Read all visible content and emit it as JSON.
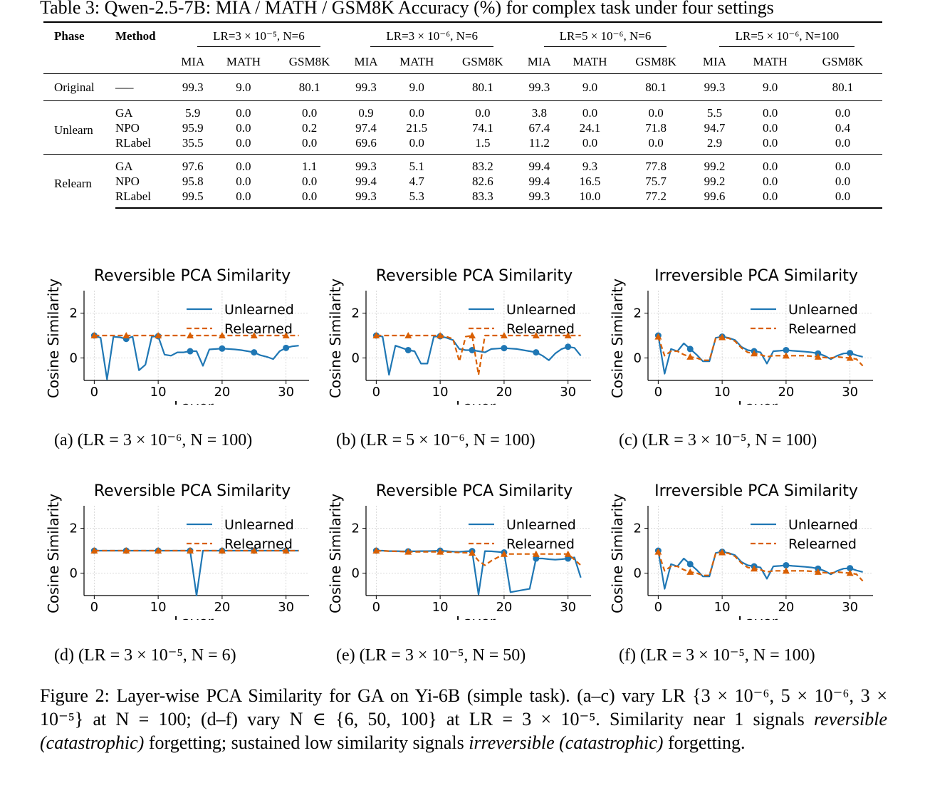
{
  "table": {
    "caption": "Table 3: Qwen-2.5-7B: MIA / MATH / GSM8K Accuracy (%) for complex task under four settings",
    "col_phase": "Phase",
    "col_method": "Method",
    "settings": [
      "LR=3 × 10⁻⁵, N=6",
      "LR=3 × 10⁻⁶, N=6",
      "LR=5 × 10⁻⁶, N=6",
      "LR=5 × 10⁻⁶, N=100"
    ],
    "metrics": [
      "MIA",
      "MATH",
      "GSM8K"
    ],
    "original": {
      "phase": "Original",
      "method": "—–",
      "values": [
        "99.3",
        "9.0",
        "80.1",
        "99.3",
        "9.0",
        "80.1",
        "99.3",
        "9.0",
        "80.1",
        "99.3",
        "9.0",
        "80.1"
      ]
    },
    "unlearn": {
      "phase": "Unlearn",
      "rows": [
        {
          "method": "GA",
          "values": [
            "5.9",
            "0.0",
            "0.0",
            "0.9",
            "0.0",
            "0.0",
            "3.8",
            "0.0",
            "0.0",
            "5.5",
            "0.0",
            "0.0"
          ]
        },
        {
          "method": "NPO",
          "values": [
            "95.9",
            "0.0",
            "0.2",
            "97.4",
            "21.5",
            "74.1",
            "67.4",
            "24.1",
            "71.8",
            "94.7",
            "0.0",
            "0.4"
          ]
        },
        {
          "method": "RLabel",
          "values": [
            "35.5",
            "0.0",
            "0.0",
            "69.6",
            "0.0",
            "1.5",
            "11.2",
            "0.0",
            "0.0",
            "2.9",
            "0.0",
            "0.0"
          ]
        }
      ]
    },
    "relearn": {
      "phase": "Relearn",
      "rows": [
        {
          "method": "GA",
          "values": [
            "97.6",
            "0.0",
            "1.1",
            "99.3",
            "5.1",
            "83.2",
            "99.4",
            "9.3",
            "77.8",
            "99.2",
            "0.0",
            "0.0"
          ]
        },
        {
          "method": "NPO",
          "values": [
            "95.8",
            "0.0",
            "0.0",
            "99.4",
            "4.7",
            "82.6",
            "99.4",
            "16.5",
            "75.7",
            "99.2",
            "0.0",
            "0.0"
          ]
        },
        {
          "method": "RLabel",
          "values": [
            "99.5",
            "0.0",
            "0.0",
            "99.3",
            "5.3",
            "83.3",
            "99.3",
            "10.0",
            "77.2",
            "99.6",
            "0.0",
            "0.0"
          ]
        }
      ]
    }
  },
  "chart_data": [
    {
      "type": "line",
      "title": "Reversible PCA Similarity",
      "xlabel": "Layer",
      "ylabel": "Cosine Similarity",
      "xlim": [
        -1.6,
        33.6
      ],
      "ylim": [
        -1,
        3
      ],
      "xticks": [
        0,
        10,
        20,
        30
      ],
      "yticks": [
        0,
        2
      ],
      "grid": true,
      "legend": "top-right",
      "caption": "(a) (LR = 3 × 10⁻⁶, N = 100)",
      "series": [
        {
          "name": "Unlearned",
          "color": "#1f77b4",
          "marker_every": 5,
          "x": [
            0,
            1,
            2,
            3,
            4,
            5,
            6,
            7,
            8,
            9,
            10,
            11,
            12,
            13,
            14,
            15,
            16,
            17,
            18,
            19,
            20,
            21,
            22,
            23,
            24,
            25,
            26,
            27,
            28,
            29,
            30,
            31,
            32
          ],
          "values": [
            1.0,
            0.9,
            -0.95,
            0.95,
            0.92,
            0.85,
            0.95,
            -0.55,
            -0.3,
            0.95,
            0.97,
            0.15,
            0.1,
            0.25,
            0.25,
            0.3,
            0.3,
            -0.35,
            0.38,
            0.4,
            0.42,
            0.4,
            0.38,
            0.35,
            0.3,
            0.25,
            0.12,
            0.05,
            -0.05,
            0.3,
            0.45,
            0.52,
            0.55
          ]
        },
        {
          "name": "Relearned",
          "color": "#d95f02",
          "dashed": true,
          "marker_every": 5,
          "x": [
            0,
            5,
            10,
            15,
            20,
            25,
            30,
            32
          ],
          "values": [
            1.0,
            1.0,
            1.0,
            1.0,
            1.0,
            1.0,
            1.0,
            1.0
          ]
        }
      ]
    },
    {
      "type": "line",
      "title": "Reversible PCA Similarity",
      "xlabel": "Layer",
      "ylabel": "Cosine Similarity",
      "xlim": [
        -1.6,
        33.6
      ],
      "ylim": [
        -1,
        3
      ],
      "xticks": [
        0,
        10,
        20,
        30
      ],
      "yticks": [
        0,
        2
      ],
      "grid": true,
      "legend": "top-right",
      "caption": "(b) (LR = 5 × 10⁻⁶, N = 100)",
      "series": [
        {
          "name": "Unlearned",
          "color": "#1f77b4",
          "marker_every": 5,
          "x": [
            0,
            1,
            2,
            3,
            4,
            5,
            6,
            7,
            8,
            9,
            10,
            11,
            12,
            13,
            14,
            15,
            16,
            17,
            18,
            19,
            20,
            21,
            22,
            23,
            24,
            25,
            26,
            27,
            28,
            29,
            30,
            31,
            32
          ],
          "values": [
            1.0,
            0.95,
            -0.75,
            0.55,
            0.45,
            0.35,
            0.3,
            -0.25,
            -0.25,
            0.95,
            0.97,
            0.9,
            0.8,
            0.4,
            0.35,
            0.35,
            0.3,
            0.25,
            0.4,
            0.42,
            0.44,
            0.42,
            0.4,
            0.35,
            0.3,
            0.25,
            0.1,
            -0.1,
            0.2,
            0.4,
            0.5,
            0.45,
            0.1
          ]
        },
        {
          "name": "Relearned",
          "color": "#d95f02",
          "dashed": true,
          "marker_every": 5,
          "x": [
            0,
            5,
            10,
            11,
            12,
            13,
            14,
            15,
            16,
            17,
            20,
            25,
            30,
            32
          ],
          "values": [
            1.0,
            1.0,
            1.0,
            0.95,
            0.85,
            -0.15,
            0.95,
            1.0,
            -0.75,
            1.0,
            1.0,
            1.0,
            1.0,
            1.0
          ]
        }
      ]
    },
    {
      "type": "line",
      "title": "Irreversible PCA Similarity",
      "xlabel": "Layer",
      "ylabel": "Cosine Similarity",
      "xlim": [
        -1.6,
        33.6
      ],
      "ylim": [
        -1,
        3
      ],
      "xticks": [
        0,
        10,
        20,
        30
      ],
      "yticks": [
        0,
        2
      ],
      "grid": true,
      "legend": "top-right",
      "caption": "(c) (LR = 3 × 10⁻⁵, N = 100)",
      "series": [
        {
          "name": "Unlearned",
          "color": "#1f77b4",
          "marker_every": 5,
          "x": [
            0,
            1,
            2,
            3,
            4,
            5,
            6,
            7,
            8,
            9,
            10,
            11,
            12,
            13,
            14,
            15,
            16,
            17,
            18,
            19,
            20,
            21,
            22,
            23,
            24,
            25,
            26,
            27,
            28,
            29,
            30,
            31,
            32
          ],
          "values": [
            1.0,
            -0.7,
            0.4,
            0.3,
            0.65,
            0.4,
            0.15,
            -0.15,
            -0.15,
            0.9,
            0.95,
            0.9,
            0.8,
            0.5,
            0.35,
            0.3,
            0.25,
            -0.25,
            0.3,
            0.32,
            0.35,
            0.32,
            0.3,
            0.28,
            0.25,
            0.2,
            0.1,
            -0.05,
            0.1,
            0.2,
            0.22,
            0.12,
            0.05
          ]
        },
        {
          "name": "Relearned",
          "color": "#d95f02",
          "dashed": true,
          "marker_every": 5,
          "x": [
            0,
            1,
            2,
            3,
            4,
            5,
            6,
            7,
            8,
            9,
            10,
            11,
            12,
            13,
            14,
            15,
            16,
            17,
            18,
            19,
            20,
            21,
            22,
            23,
            24,
            25,
            26,
            27,
            28,
            29,
            30,
            31,
            32
          ],
          "values": [
            0.95,
            0.1,
            0.3,
            0.3,
            0.15,
            0.05,
            0.0,
            -0.1,
            -0.1,
            0.9,
            0.92,
            0.88,
            0.75,
            0.45,
            0.25,
            0.2,
            0.15,
            0.05,
            0.1,
            0.1,
            0.1,
            0.1,
            0.1,
            0.1,
            0.08,
            0.05,
            0.02,
            0.0,
            0.05,
            0.02,
            0.0,
            -0.05,
            -0.35
          ]
        }
      ]
    },
    {
      "type": "line",
      "title": "Reversible PCA Similarity",
      "xlabel": "Layer",
      "ylabel": "Cosine Similarity",
      "xlim": [
        -1.6,
        33.6
      ],
      "ylim": [
        -1,
        3
      ],
      "xticks": [
        0,
        10,
        20,
        30
      ],
      "yticks": [
        0,
        2
      ],
      "grid": true,
      "legend": "top-right",
      "caption": "(d) (LR = 3 × 10⁻⁵, N = 6)",
      "series": [
        {
          "name": "Unlearned",
          "color": "#1f77b4",
          "marker_every": 5,
          "x": [
            0,
            1,
            2,
            3,
            4,
            5,
            6,
            7,
            8,
            9,
            10,
            11,
            12,
            13,
            14,
            15,
            16,
            17,
            18,
            19,
            20,
            21,
            22,
            23,
            24,
            25,
            26,
            27,
            28,
            29,
            30,
            31,
            32
          ],
          "values": [
            1.0,
            1.0,
            1.0,
            1.0,
            1.0,
            1.0,
            1.0,
            1.0,
            1.0,
            1.0,
            1.0,
            1.0,
            1.0,
            1.0,
            1.0,
            1.0,
            -1.0,
            1.0,
            1.0,
            1.0,
            1.0,
            1.0,
            1.0,
            1.0,
            1.0,
            1.0,
            1.0,
            1.0,
            1.0,
            1.0,
            1.0,
            1.0,
            1.0
          ]
        },
        {
          "name": "Relearned",
          "color": "#d95f02",
          "dashed": true,
          "marker_every": 5,
          "x": [
            0,
            5,
            10,
            15,
            20,
            25,
            30,
            32
          ],
          "values": [
            1.0,
            1.0,
            1.0,
            1.0,
            1.0,
            1.0,
            1.0,
            1.0
          ]
        }
      ]
    },
    {
      "type": "line",
      "title": "Reversible PCA Similarity",
      "xlabel": "Layer",
      "ylabel": "Cosine Similarity",
      "xlim": [
        -1.6,
        33.6
      ],
      "ylim": [
        -1,
        3
      ],
      "xticks": [
        0,
        10,
        20,
        30
      ],
      "yticks": [
        0,
        2
      ],
      "grid": true,
      "legend": "top-right",
      "caption": "(e) (LR = 3 × 10⁻⁵, N = 50)",
      "series": [
        {
          "name": "Unlearned",
          "color": "#1f77b4",
          "marker_every": 5,
          "x": [
            0,
            1,
            2,
            3,
            4,
            5,
            6,
            7,
            8,
            9,
            10,
            11,
            12,
            13,
            14,
            15,
            16,
            17,
            18,
            19,
            20,
            21,
            22,
            23,
            24,
            25,
            26,
            27,
            28,
            29,
            30,
            31,
            32
          ],
          "values": [
            1.0,
            1.0,
            0.98,
            0.98,
            0.97,
            0.97,
            0.97,
            0.98,
            0.98,
            0.99,
            1.0,
            0.98,
            0.96,
            0.95,
            0.97,
            0.98,
            -0.95,
            0.98,
            0.97,
            0.95,
            0.92,
            -0.85,
            -0.8,
            -0.75,
            -0.7,
            0.65,
            0.65,
            0.62,
            0.6,
            0.62,
            0.65,
            0.7,
            -0.2
          ]
        },
        {
          "name": "Relearned",
          "color": "#d95f02",
          "dashed": true,
          "marker_every": 5,
          "x": [
            0,
            5,
            10,
            15,
            16,
            17,
            18,
            20,
            25,
            30,
            32
          ],
          "values": [
            1.0,
            0.95,
            0.95,
            0.9,
            0.55,
            0.35,
            0.55,
            0.85,
            0.85,
            0.85,
            0.35
          ]
        }
      ]
    },
    {
      "type": "line",
      "title": "Irreversible PCA Similarity",
      "xlabel": "Layer",
      "ylabel": "Cosine Similarity",
      "xlim": [
        -1.6,
        33.6
      ],
      "ylim": [
        -1,
        3
      ],
      "xticks": [
        0,
        10,
        20,
        30
      ],
      "yticks": [
        0,
        2
      ],
      "grid": true,
      "legend": "top-right",
      "caption": "(f) (LR = 3 × 10⁻⁵, N = 100)",
      "series": [
        {
          "name": "Unlearned",
          "color": "#1f77b4",
          "marker_every": 5,
          "x": [
            0,
            1,
            2,
            3,
            4,
            5,
            6,
            7,
            8,
            9,
            10,
            11,
            12,
            13,
            14,
            15,
            16,
            17,
            18,
            19,
            20,
            21,
            22,
            23,
            24,
            25,
            26,
            27,
            28,
            29,
            30,
            31,
            32
          ],
          "values": [
            1.0,
            -0.7,
            0.4,
            0.3,
            0.65,
            0.4,
            0.15,
            -0.15,
            -0.15,
            0.9,
            0.95,
            0.9,
            0.8,
            0.5,
            0.35,
            0.3,
            0.25,
            -0.25,
            0.3,
            0.32,
            0.35,
            0.32,
            0.3,
            0.28,
            0.25,
            0.2,
            0.1,
            -0.05,
            0.1,
            0.2,
            0.22,
            0.12,
            0.05
          ]
        },
        {
          "name": "Relearned",
          "color": "#d95f02",
          "dashed": true,
          "marker_every": 5,
          "x": [
            0,
            1,
            2,
            3,
            4,
            5,
            6,
            7,
            8,
            9,
            10,
            11,
            12,
            13,
            14,
            15,
            16,
            17,
            18,
            19,
            20,
            21,
            22,
            23,
            24,
            25,
            26,
            27,
            28,
            29,
            30,
            31,
            32
          ],
          "values": [
            0.95,
            0.1,
            0.3,
            0.3,
            0.15,
            0.05,
            0.0,
            -0.1,
            -0.1,
            0.9,
            0.92,
            0.88,
            0.75,
            0.45,
            0.25,
            0.2,
            0.15,
            0.05,
            0.1,
            0.1,
            0.1,
            0.1,
            0.1,
            0.1,
            0.08,
            0.05,
            0.02,
            0.0,
            0.05,
            0.02,
            0.0,
            -0.05,
            -0.35
          ]
        }
      ]
    }
  ],
  "figure_caption": {
    "part1": "Figure 2: Layer-wise PCA Similarity for GA on Yi-6B (simple task). (a–c) vary LR {3 × 10⁻⁶, 5 × 10⁻⁶, 3 × 10⁻⁵} at N = 100; (d–f) vary N ∈ {6, 50, 100} at LR = 3 × 10⁻⁵. Similarity near 1 signals ",
    "em1": "reversible (catastrophic)",
    "part2": " forgetting; sustained low similarity signals ",
    "em2": "irreversible (catastrophic)",
    "part3": " forgetting."
  }
}
